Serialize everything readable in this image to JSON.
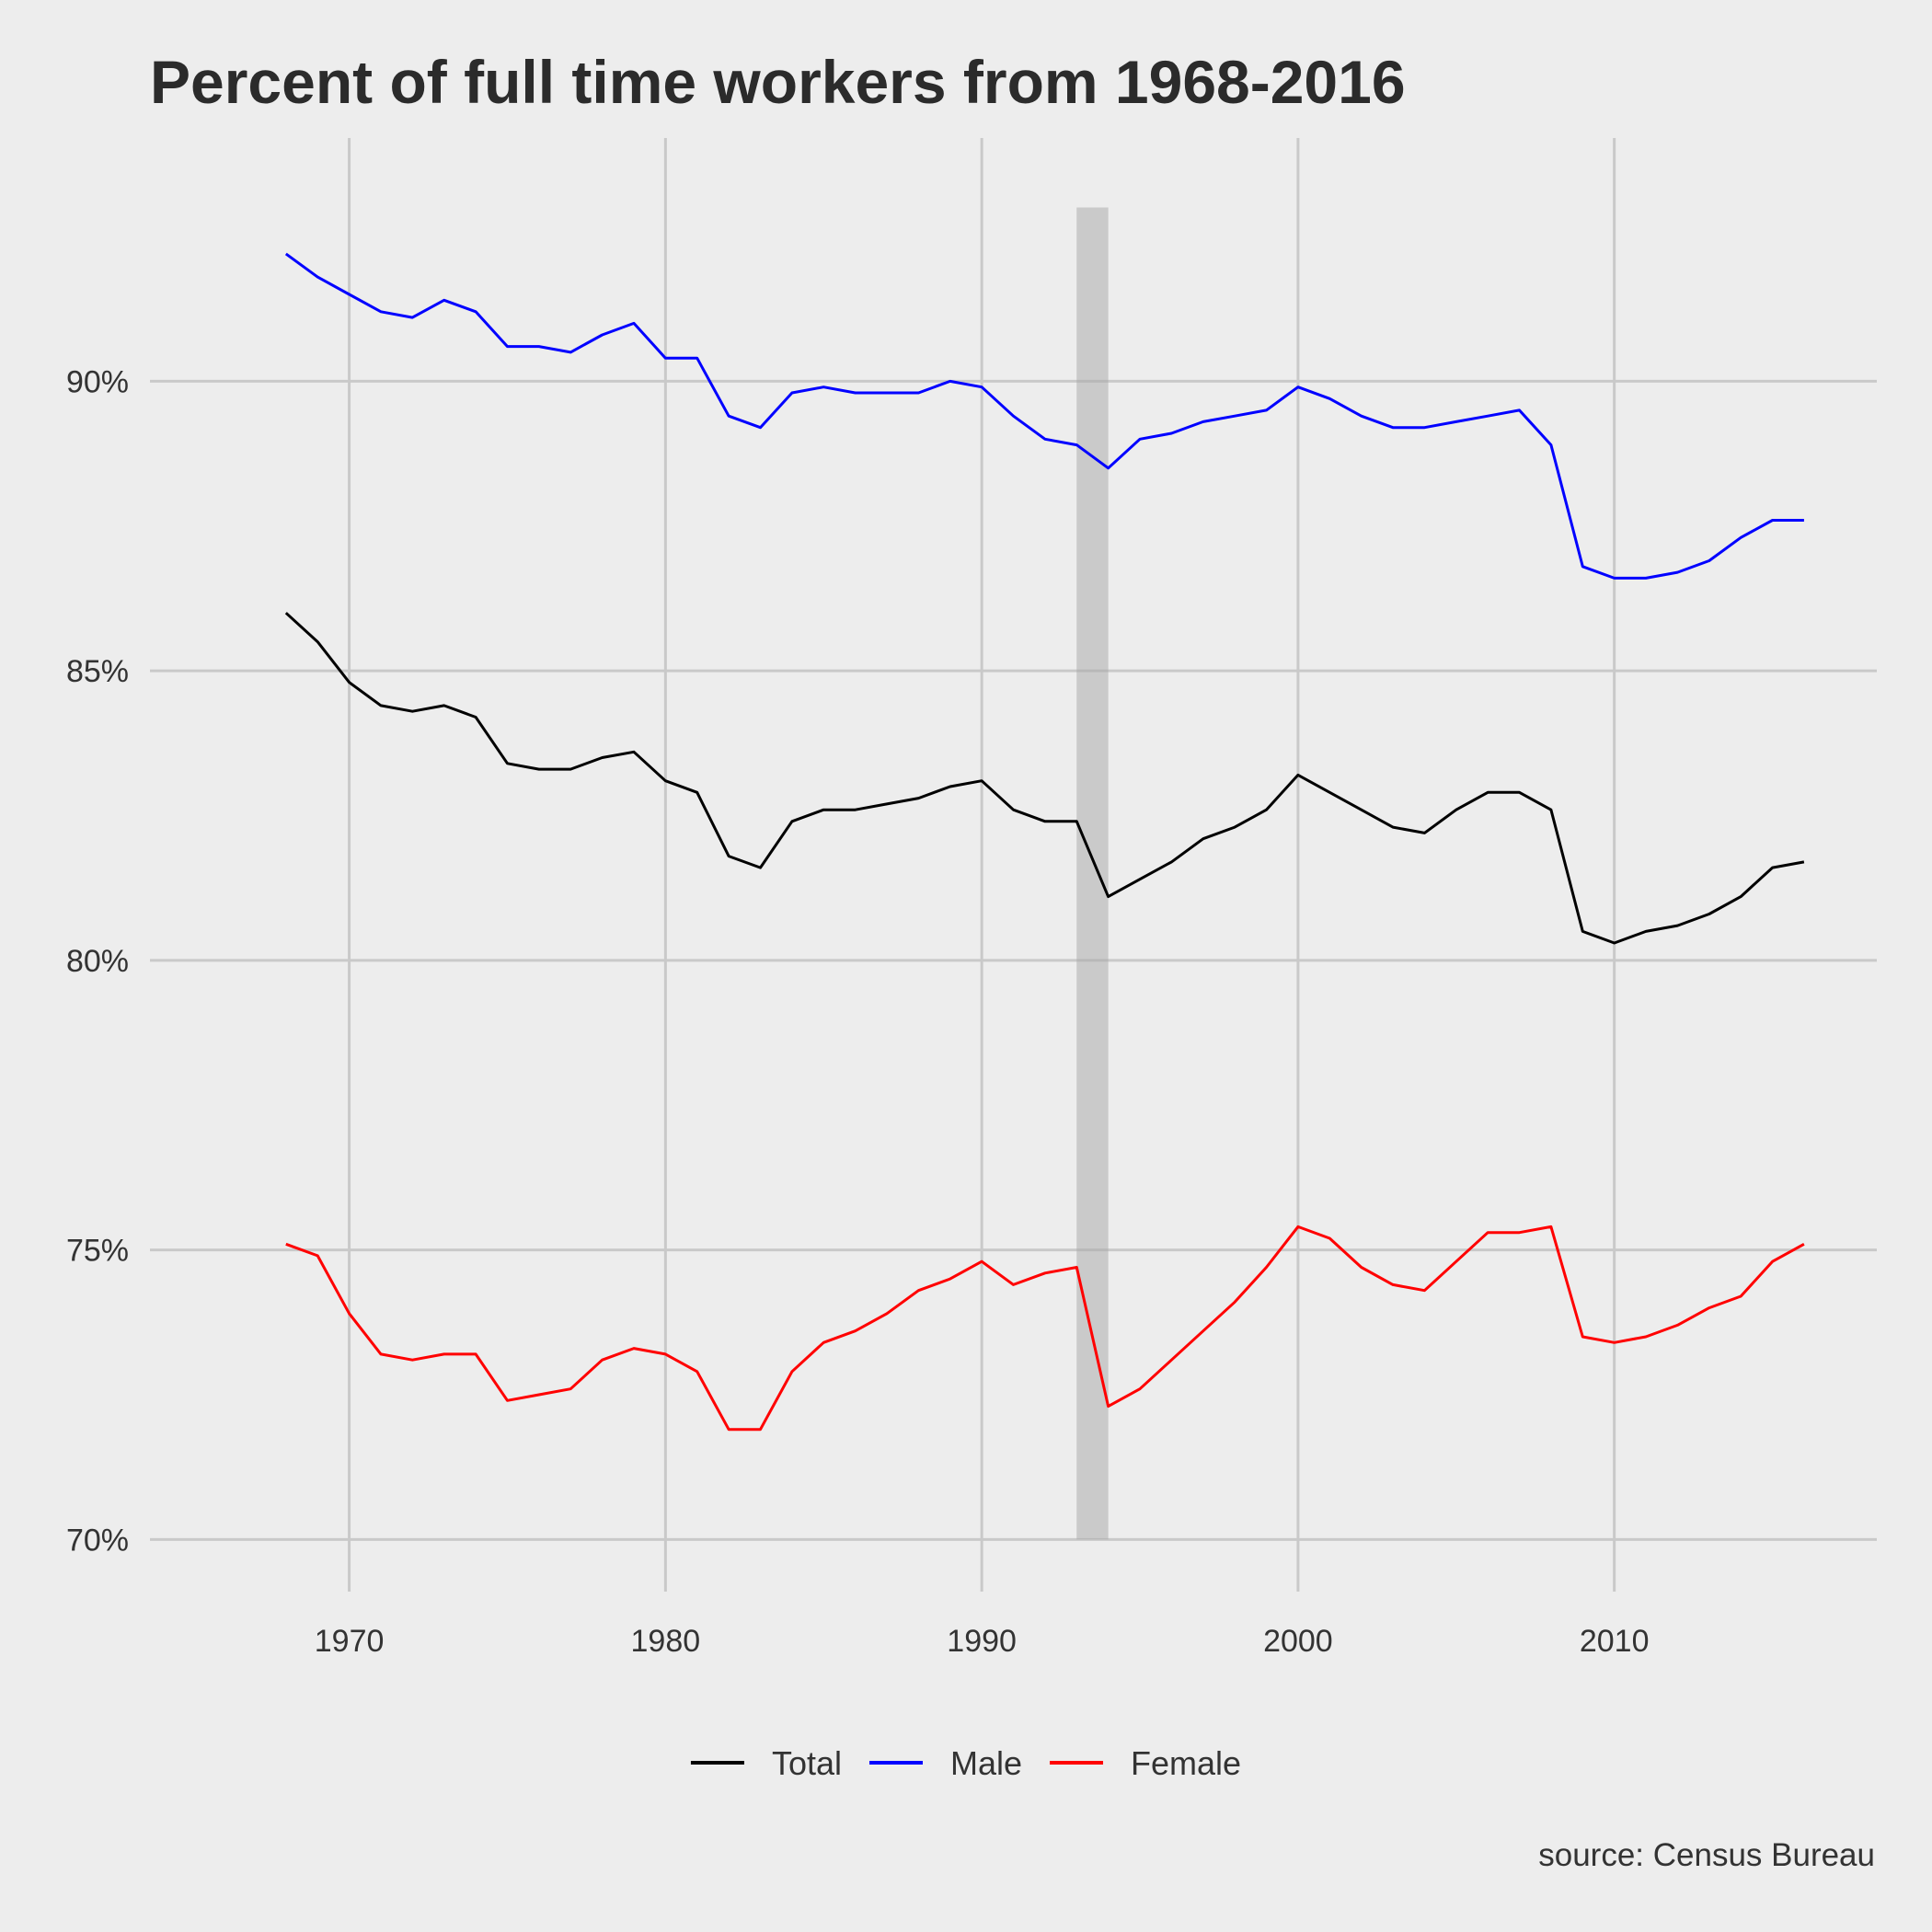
{
  "chart_data": {
    "type": "line",
    "title": "Percent of full time workers from 1968-2016",
    "caption": "source: Census Bureau",
    "xlabel": "",
    "ylabel": "",
    "xlim": [
      1963.7,
      2018.3
    ],
    "ylim": [
      69.1,
      94.2
    ],
    "x_ticks": [
      1970,
      1980,
      1990,
      2000,
      2010
    ],
    "x_tick_labels": [
      "1970",
      "1980",
      "1990",
      "2000",
      "2010"
    ],
    "y_ticks": [
      70,
      75,
      80,
      85,
      90
    ],
    "y_tick_labels": [
      "70%",
      "75%",
      "80%",
      "85%",
      "90%"
    ],
    "grid": true,
    "legend_position": "bottom",
    "shaded_region": {
      "x": [
        1993,
        1994
      ],
      "y": [
        70,
        93
      ]
    },
    "x": [
      1968,
      1969,
      1970,
      1971,
      1972,
      1973,
      1974,
      1975,
      1976,
      1977,
      1978,
      1979,
      1980,
      1981,
      1982,
      1983,
      1984,
      1985,
      1986,
      1987,
      1988,
      1989,
      1990,
      1991,
      1992,
      1993,
      1994,
      1995,
      1996,
      1997,
      1998,
      1999,
      2000,
      2001,
      2002,
      2003,
      2004,
      2005,
      2006,
      2007,
      2008,
      2009,
      2010,
      2011,
      2012,
      2013,
      2014,
      2015,
      2016
    ],
    "series": [
      {
        "name": "Total",
        "color": "#000000",
        "values": [
          86.0,
          85.5,
          84.8,
          84.4,
          84.3,
          84.4,
          84.2,
          83.4,
          83.3,
          83.3,
          83.5,
          83.6,
          83.1,
          82.9,
          81.8,
          81.6,
          82.4,
          82.6,
          82.6,
          82.7,
          82.8,
          83.0,
          83.1,
          82.6,
          82.4,
          82.4,
          81.1,
          81.4,
          81.7,
          82.1,
          82.3,
          82.6,
          83.2,
          82.9,
          82.6,
          82.3,
          82.2,
          82.6,
          82.9,
          82.9,
          82.6,
          80.5,
          80.3,
          80.5,
          80.6,
          80.8,
          81.1,
          81.6,
          81.7
        ]
      },
      {
        "name": "Male",
        "color": "#0000ff",
        "values": [
          92.2,
          91.8,
          91.5,
          91.2,
          91.1,
          91.4,
          91.2,
          90.6,
          90.6,
          90.5,
          90.8,
          91.0,
          90.4,
          90.4,
          89.4,
          89.2,
          89.8,
          89.9,
          89.8,
          89.8,
          89.8,
          90.0,
          89.9,
          89.4,
          89.0,
          88.9,
          88.5,
          89.0,
          89.1,
          89.3,
          89.4,
          89.5,
          89.9,
          89.7,
          89.4,
          89.2,
          89.2,
          89.3,
          89.4,
          89.5,
          88.9,
          86.8,
          86.6,
          86.6,
          86.7,
          86.9,
          87.3,
          87.6,
          87.6
        ]
      },
      {
        "name": "Female",
        "color": "#ff0000",
        "values": [
          75.1,
          74.9,
          73.9,
          73.2,
          73.1,
          73.2,
          73.2,
          72.4,
          72.5,
          72.6,
          73.1,
          73.3,
          73.2,
          72.9,
          71.9,
          71.9,
          72.9,
          73.4,
          73.6,
          73.9,
          74.3,
          74.5,
          74.8,
          74.4,
          74.6,
          74.7,
          72.3,
          72.6,
          73.1,
          73.6,
          74.1,
          74.7,
          75.4,
          75.2,
          74.7,
          74.4,
          74.3,
          74.8,
          75.3,
          75.3,
          75.4,
          73.5,
          73.4,
          73.5,
          73.7,
          74.0,
          74.2,
          74.8,
          75.1
        ]
      }
    ]
  }
}
